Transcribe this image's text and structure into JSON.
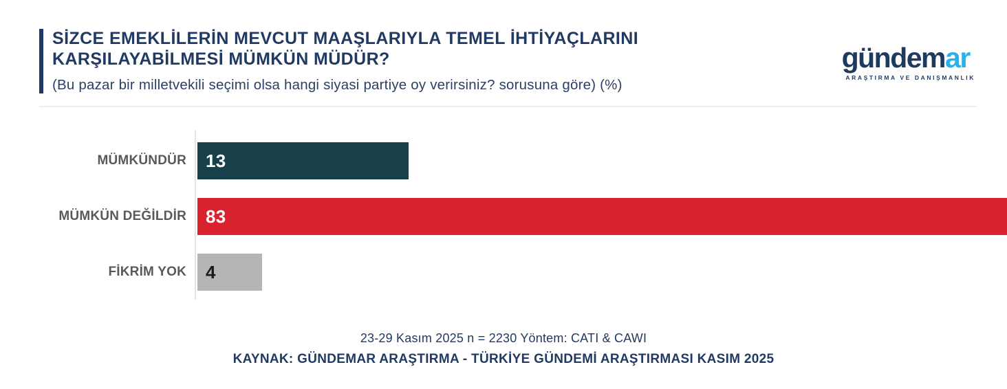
{
  "header": {
    "title_line1": "SİZCE EMEKLİLERİN MEVCUT MAAŞLARIYLA TEMEL İHTİYAÇLARINI",
    "title_line2": "KARŞILAYABİLMESİ MÜMKÜN MÜDÜR?",
    "subtitle": "(Bu pazar bir milletvekili seçimi olsa hangi siyasi partiye oy verirsiniz? sorusuna göre) (%)"
  },
  "logo": {
    "wordmark_primary": "gündem",
    "wordmark_accent": "ar",
    "tagline": "ARAŞTIRMA VE DANIŞMANLIK",
    "primary_color": "#1e3a5f",
    "accent_color": "#29b2e8"
  },
  "chart_data": {
    "type": "bar",
    "orientation": "horizontal",
    "title": "SİZCE EMEKLİLERİN MEVCUT MAAŞLARIYLA TEMEL İHTİYAÇLARINI KARŞILAYABİLMESİ MÜMKÜN MÜDÜR?",
    "subtitle": "(Bu pazar bir milletvekili seçimi olsa hangi siyasi partiye oy verirsiniz? sorusuna göre) (%)",
    "categories": [
      "MÜMKÜNDÜR",
      "MÜMKÜN DEĞİLDİR",
      "FİKRİM YOK"
    ],
    "values": [
      13,
      83,
      4
    ],
    "unit": "%",
    "bar_colors": [
      "#17404a",
      "#d8232e",
      "#b5b5b5"
    ],
    "value_label_colors": [
      "#ffffff",
      "#ffffff",
      "#1a1a1a"
    ],
    "value_label_position": "inside-left",
    "xlim": [
      0,
      50
    ],
    "longest_bar_clipped_at_full_width": true,
    "grid": false,
    "legend": "none",
    "category_label_color": "#58595b",
    "axis_line_color": "#e4e4e6"
  },
  "footer": {
    "line1": "23-29 Kasım 2025 n = 2230 Yöntem: CATI & CAWI",
    "line2": "KAYNAK: GÜNDEMAR ARAŞTIRMA - TÜRKİYE GÜNDEMİ ARAŞTIRMASI KASIM 2025"
  }
}
